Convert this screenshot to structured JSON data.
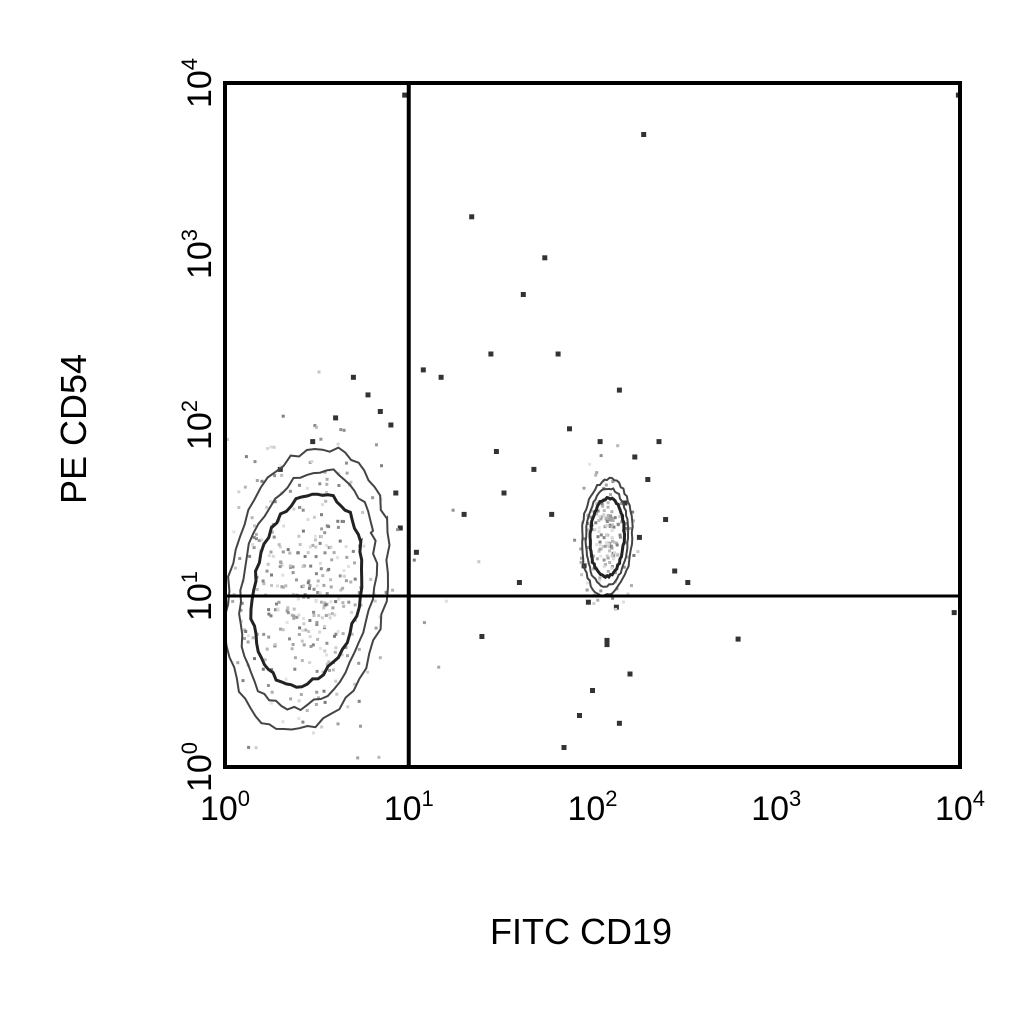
{
  "chart_data": {
    "type": "scatter",
    "title": "",
    "xlabel": "FITC CD19",
    "ylabel": "PE CD54",
    "x_scale": "log",
    "y_scale": "log",
    "xlim": [
      1,
      10000
    ],
    "ylim": [
      1,
      10000
    ],
    "x_ticks": [
      {
        "base": "10",
        "exp": "0",
        "value": 1
      },
      {
        "base": "10",
        "exp": "1",
        "value": 10
      },
      {
        "base": "10",
        "exp": "2",
        "value": 100
      },
      {
        "base": "10",
        "exp": "3",
        "value": 1000
      },
      {
        "base": "10",
        "exp": "4",
        "value": 10000
      }
    ],
    "y_ticks": [
      {
        "base": "10",
        "exp": "0",
        "value": 1
      },
      {
        "base": "10",
        "exp": "1",
        "value": 10
      },
      {
        "base": "10",
        "exp": "2",
        "value": 100
      },
      {
        "base": "10",
        "exp": "3",
        "value": 1000
      },
      {
        "base": "10",
        "exp": "4",
        "value": 10000
      }
    ],
    "grid": false,
    "quadrant_gates": {
      "x": 10,
      "y": 10
    },
    "populations": [
      {
        "kind": "contour",
        "center": [
          2.8,
          11
        ],
        "spread": [
          0.32,
          0.55
        ]
      },
      {
        "kind": "contour",
        "center": [
          120,
          22
        ],
        "spread": [
          0.09,
          0.22
        ]
      }
    ],
    "points": [
      [
        9.5,
        8500
      ],
      [
        9800,
        8500
      ],
      [
        190,
        5000
      ],
      [
        22,
        1650
      ],
      [
        55,
        950
      ],
      [
        42,
        580
      ],
      [
        12,
        210
      ],
      [
        28,
        260
      ],
      [
        65,
        260
      ],
      [
        140,
        160
      ],
      [
        15,
        190
      ],
      [
        95,
        9.2
      ],
      [
        135,
        8.6
      ],
      [
        120,
        5.5
      ],
      [
        120,
        5.2
      ],
      [
        9300,
        8.0
      ],
      [
        620,
        5.6
      ],
      [
        330,
        12
      ],
      [
        280,
        14
      ],
      [
        25,
        5.8
      ],
      [
        20,
        30
      ],
      [
        33,
        40
      ],
      [
        48,
        55
      ],
      [
        75,
        95
      ],
      [
        170,
        65
      ],
      [
        200,
        48
      ],
      [
        90,
        15
      ],
      [
        150,
        35
      ],
      [
        110,
        80
      ],
      [
        60,
        30
      ],
      [
        40,
        12
      ],
      [
        30,
        70
      ],
      [
        250,
        28
      ],
      [
        180,
        22
      ],
      [
        230,
        80
      ],
      [
        85,
        2.0
      ],
      [
        100,
        2.8
      ],
      [
        140,
        1.8
      ],
      [
        70,
        1.3
      ],
      [
        160,
        3.5
      ],
      [
        6,
        150
      ],
      [
        5,
        190
      ],
      [
        7,
        120
      ],
      [
        8,
        100
      ],
      [
        4,
        110
      ],
      [
        3,
        80
      ],
      [
        2,
        55
      ],
      [
        8.5,
        40
      ],
      [
        9,
        25
      ],
      [
        11,
        18
      ]
    ]
  }
}
